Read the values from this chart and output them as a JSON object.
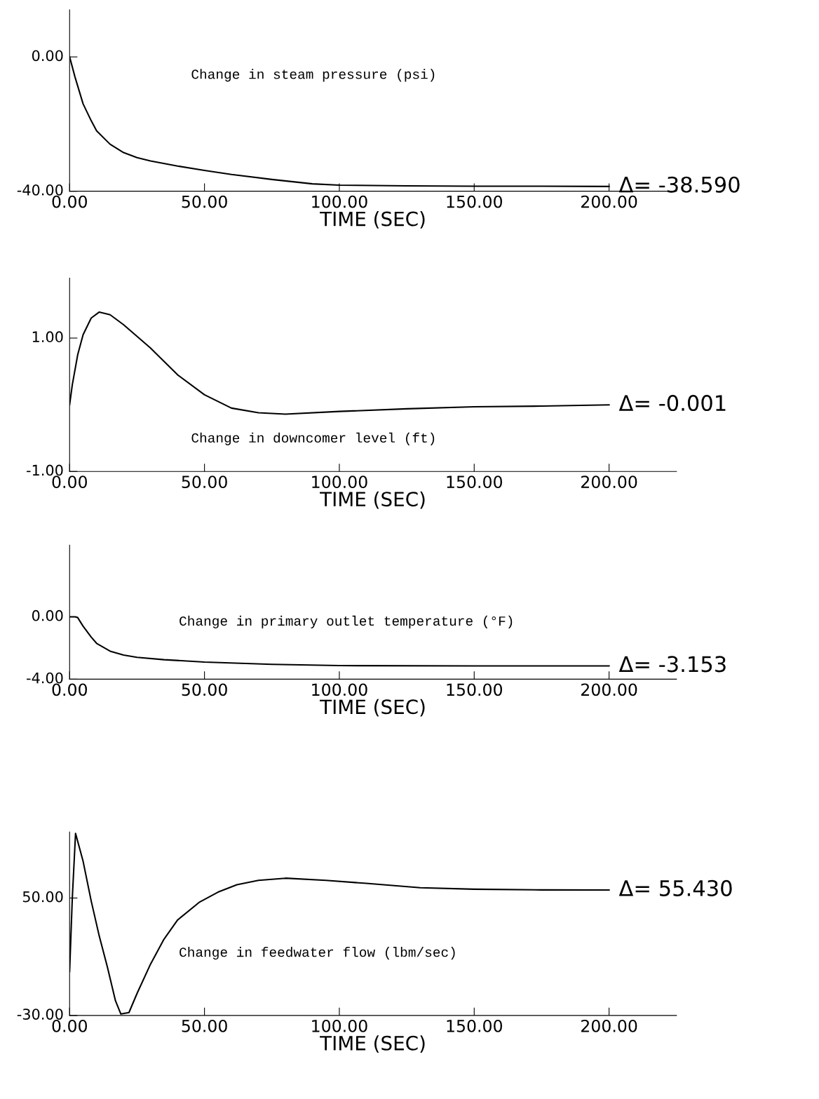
{
  "chart_data": [
    {
      "type": "line",
      "xlabel": "TIME (SEC)",
      "xlim": [
        0,
        225
      ],
      "ylim": [
        -40,
        14
      ],
      "xticks": [
        {
          "value": 0,
          "label": "0.00"
        },
        {
          "value": 50,
          "label": "50.00"
        },
        {
          "value": 100,
          "label": "100.00"
        },
        {
          "value": 150,
          "label": "150.00"
        },
        {
          "value": 200,
          "label": "200.00"
        }
      ],
      "yticks": [
        {
          "value": -40,
          "label": "-40.00"
        },
        {
          "value": 0,
          "label": "0.00"
        }
      ],
      "grid": false,
      "marker": "none",
      "line_style": "solid",
      "annotations": [
        "Change in steam pressure (psi)",
        "Δ= -38.590"
      ],
      "x": [
        0,
        2,
        5,
        8,
        10,
        15,
        20,
        25,
        30,
        40,
        50,
        60,
        75,
        90,
        100,
        125,
        150,
        175,
        200
      ],
      "series": [
        {
          "color": "#000000",
          "values": [
            0,
            -6,
            -14,
            -19,
            -22,
            -26,
            -28.5,
            -30,
            -31,
            -32.5,
            -33.8,
            -35,
            -36.5,
            -37.8,
            -38.2,
            -38.4,
            -38.5,
            -38.5,
            -38.59
          ]
        }
      ]
    },
    {
      "type": "line",
      "xlabel": "TIME (SEC)",
      "xlim": [
        0,
        225
      ],
      "ylim": [
        -1,
        1.9
      ],
      "xticks": [
        {
          "value": 0,
          "label": "0.00"
        },
        {
          "value": 50,
          "label": "50.00"
        },
        {
          "value": 100,
          "label": "100.00"
        },
        {
          "value": 150,
          "label": "150.00"
        },
        {
          "value": 200,
          "label": "200.00"
        }
      ],
      "yticks": [
        {
          "value": -1,
          "label": "-1.00"
        },
        {
          "value": 1,
          "label": "1.00"
        }
      ],
      "grid": false,
      "marker": "none",
      "line_style": "solid",
      "annotations": [
        "Change in downcomer level (ft)",
        "Δ= -0.001"
      ],
      "x": [
        0,
        1,
        3,
        5,
        8,
        11,
        15,
        20,
        30,
        40,
        50,
        60,
        70,
        80,
        100,
        125,
        150,
        175,
        200
      ],
      "series": [
        {
          "color": "#000000",
          "values": [
            0,
            0.3,
            0.75,
            1.05,
            1.3,
            1.39,
            1.35,
            1.2,
            0.85,
            0.45,
            0.15,
            -0.05,
            -0.12,
            -0.14,
            -0.1,
            -0.06,
            -0.03,
            -0.02,
            -0.001
          ]
        }
      ]
    },
    {
      "type": "line",
      "xlabel": "TIME (SEC)",
      "xlim": [
        0,
        225
      ],
      "ylim": [
        -4,
        4.6
      ],
      "xticks": [
        {
          "value": 0,
          "label": "0.00"
        },
        {
          "value": 50,
          "label": "50.00"
        },
        {
          "value": 100,
          "label": "100.00"
        },
        {
          "value": 150,
          "label": "150.00"
        },
        {
          "value": 200,
          "label": "200.00"
        }
      ],
      "yticks": [
        {
          "value": -4,
          "label": "-4.00"
        },
        {
          "value": 0,
          "label": "0.00"
        }
      ],
      "grid": false,
      "marker": "none",
      "line_style": "solid",
      "annotations": [
        "Change in primary outlet temperature (°F)",
        "Δ= -3.153"
      ],
      "x": [
        0,
        2,
        3,
        5,
        8,
        10,
        15,
        20,
        25,
        35,
        50,
        75,
        100,
        150,
        200
      ],
      "series": [
        {
          "color": "#000000",
          "values": [
            0,
            0,
            -0.05,
            -0.6,
            -1.3,
            -1.7,
            -2.2,
            -2.45,
            -2.6,
            -2.75,
            -2.9,
            -3.05,
            -3.13,
            -3.15,
            -3.153
          ]
        }
      ]
    },
    {
      "type": "line",
      "xlabel": "TIME (SEC)",
      "xlim": [
        0,
        225
      ],
      "ylim": [
        -30,
        95
      ],
      "xticks": [
        {
          "value": 0,
          "label": "0.00"
        },
        {
          "value": 50,
          "label": "50.00"
        },
        {
          "value": 100,
          "label": "100.00"
        },
        {
          "value": 150,
          "label": "150.00"
        },
        {
          "value": 200,
          "label": "200.00"
        }
      ],
      "yticks": [
        {
          "value": -30,
          "label": "-30.00"
        },
        {
          "value": 50,
          "label": "50.00"
        }
      ],
      "grid": false,
      "marker": "none",
      "line_style": "solid",
      "annotations": [
        "Change in feedwater flow (lbm/sec)",
        "Δ= 55.430"
      ],
      "x": [
        0,
        1,
        2.2,
        5,
        8,
        11,
        14,
        17,
        19,
        22,
        25,
        30,
        35,
        40,
        48,
        55,
        62,
        70,
        80,
        95,
        110,
        130,
        150,
        175,
        200
      ],
      "series": [
        {
          "color": "#000000",
          "values": [
            0,
            50,
            94,
            75,
            48,
            24,
            3,
            -20,
            -29,
            -28,
            -15,
            5,
            22,
            35,
            47,
            54,
            59,
            62,
            63.5,
            62,
            60,
            57,
            56,
            55.5,
            55.43
          ]
        }
      ]
    }
  ]
}
